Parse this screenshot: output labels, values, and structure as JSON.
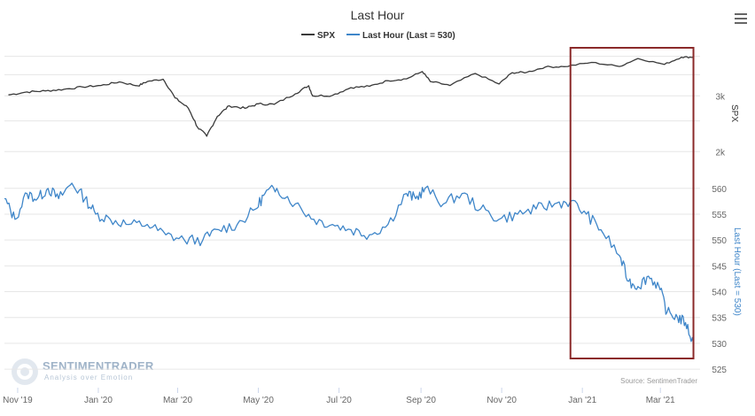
{
  "menu_icon": "hamburger-menu-icon",
  "watermark": {
    "brand": "SENTIMENTRADER",
    "tagline": "Analysis over Emotion"
  },
  "chart_data": {
    "type": "line",
    "title": "Last Hour",
    "source": "Source: SentimenTrader",
    "legend": {
      "position": "top-center",
      "items": [
        "SPX",
        "Last Hour (Last = 530)"
      ]
    },
    "x_tick_labels": [
      "Nov '19",
      "Jan '20",
      "Mar '20",
      "May '20",
      "Jul '20",
      "Sep '20",
      "Nov '20",
      "Jan '21",
      "Mar '21"
    ],
    "x_tick_dates": [
      "2019-11-01",
      "2020-01-01",
      "2020-03-01",
      "2020-05-01",
      "2020-07-01",
      "2020-09-01",
      "2020-11-01",
      "2021-01-01",
      "2021-03-01"
    ],
    "x_range": [
      "2019-10-22",
      "2021-03-31"
    ],
    "highlight": {
      "start": "2020-12-23",
      "end": "2021-03-26",
      "color": "#8b2a2a"
    },
    "grid": true,
    "series": [
      {
        "name": "SPX",
        "color": "#3a3a3a",
        "axis": "SPX",
        "x": [
          "2019-10-25",
          "2019-11-08",
          "2019-11-22",
          "2019-12-06",
          "2019-12-20",
          "2020-01-03",
          "2020-01-17",
          "2020-01-31",
          "2020-02-07",
          "2020-02-19",
          "2020-02-28",
          "2020-03-09",
          "2020-03-16",
          "2020-03-23",
          "2020-03-31",
          "2020-04-09",
          "2020-04-21",
          "2020-05-01",
          "2020-05-13",
          "2020-05-29",
          "2020-06-08",
          "2020-06-11",
          "2020-06-26",
          "2020-07-10",
          "2020-07-24",
          "2020-08-07",
          "2020-08-21",
          "2020-09-02",
          "2020-09-08",
          "2020-09-23",
          "2020-10-12",
          "2020-10-30",
          "2020-11-09",
          "2020-11-20",
          "2020-12-04",
          "2020-12-18",
          "2021-01-08",
          "2021-01-29",
          "2021-02-12",
          "2021-03-04",
          "2021-03-17",
          "2021-03-26"
        ],
        "y": [
          3020,
          3085,
          3110,
          3145,
          3200,
          3235,
          3320,
          3225,
          3330,
          3386,
          2955,
          2745,
          2386,
          2237,
          2585,
          2790,
          2740,
          2830,
          2820,
          3045,
          3230,
          3000,
          3010,
          3185,
          3215,
          3350,
          3395,
          3580,
          3330,
          3235,
          3530,
          3270,
          3550,
          3560,
          3700,
          3710,
          3825,
          3715,
          3935,
          3770,
          3975,
          3975
        ]
      },
      {
        "name": "Last Hour (Last = 530)",
        "color": "#3f86c9",
        "axis": "Last Hour (Last = 530)",
        "x": [
          "2019-10-22",
          "2019-10-30",
          "2019-11-08",
          "2019-11-16",
          "2019-11-24",
          "2019-12-02",
          "2019-12-12",
          "2019-12-22",
          "2019-12-30",
          "2020-01-10",
          "2020-01-24",
          "2020-02-07",
          "2020-02-21",
          "2020-03-06",
          "2020-03-20",
          "2020-04-01",
          "2020-04-15",
          "2020-04-29",
          "2020-05-06",
          "2020-05-15",
          "2020-05-29",
          "2020-06-12",
          "2020-06-26",
          "2020-07-10",
          "2020-07-24",
          "2020-08-07",
          "2020-08-21",
          "2020-08-28",
          "2020-09-04",
          "2020-09-18",
          "2020-10-02",
          "2020-10-16",
          "2020-10-30",
          "2020-11-13",
          "2020-11-27",
          "2020-12-11",
          "2020-12-23",
          "2021-01-04",
          "2021-01-15",
          "2021-01-29",
          "2021-02-05",
          "2021-02-12",
          "2021-02-20",
          "2021-02-28",
          "2021-03-06",
          "2021-03-14",
          "2021-03-20",
          "2021-03-26"
        ],
        "y": [
          558,
          554,
          559,
          558,
          560,
          558,
          561,
          558,
          555,
          554,
          553,
          553,
          551,
          550,
          550,
          552,
          553,
          556,
          559,
          560,
          557,
          554,
          553,
          552,
          551,
          553,
          559,
          558,
          560,
          557,
          559,
          556,
          554,
          555,
          556,
          557,
          557.5,
          555,
          552,
          547,
          542,
          541,
          543,
          541,
          536,
          535,
          534,
          530
        ]
      }
    ],
    "axes": {
      "SPX": {
        "label": "SPX",
        "scale": "log",
        "ticks": [
          "2k",
          "3k"
        ],
        "tick_values": [
          2000,
          3000
        ],
        "range": [
          1750,
          4200
        ]
      },
      "Last Hour (Last = 530)": {
        "label": "Last Hour (Last = 530)",
        "scale": "linear",
        "ticks": [
          "525",
          "530",
          "535",
          "540",
          "545",
          "550",
          "555",
          "560"
        ],
        "tick_values": [
          525,
          530,
          535,
          540,
          545,
          550,
          555,
          560
        ],
        "range": [
          524.5,
          562.7
        ]
      }
    }
  }
}
